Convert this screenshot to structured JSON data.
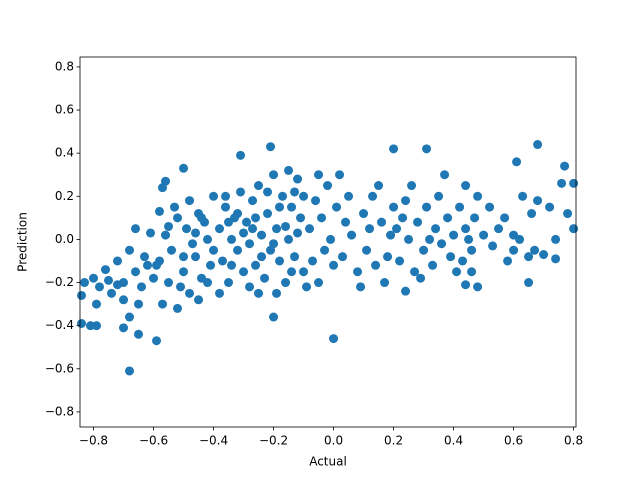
{
  "chart_data": {
    "type": "scatter",
    "xlabel": "Actual",
    "ylabel": "Prediction",
    "color": "#1f77b4",
    "xlim": [
      -0.845,
      0.808
    ],
    "ylim": [
      -0.87,
      0.846
    ],
    "xticks": [
      {
        "value": -0.8,
        "label": "−0.8"
      },
      {
        "value": -0.6,
        "label": "−0.6"
      },
      {
        "value": -0.4,
        "label": "−0.4"
      },
      {
        "value": -0.2,
        "label": "−0.2"
      },
      {
        "value": 0.0,
        "label": "0.0"
      },
      {
        "value": 0.2,
        "label": "0.2"
      },
      {
        "value": 0.4,
        "label": "0.4"
      },
      {
        "value": 0.6,
        "label": "0.6"
      },
      {
        "value": 0.8,
        "label": "0.8"
      }
    ],
    "yticks": [
      {
        "value": -0.8,
        "label": "−0.8"
      },
      {
        "value": -0.6,
        "label": "−0.6"
      },
      {
        "value": -0.4,
        "label": "−0.4"
      },
      {
        "value": -0.2,
        "label": "−0.2"
      },
      {
        "value": 0.0,
        "label": "0.0"
      },
      {
        "value": 0.2,
        "label": "0.2"
      },
      {
        "value": 0.4,
        "label": "0.4"
      },
      {
        "value": 0.6,
        "label": "0.6"
      },
      {
        "value": 0.8,
        "label": "0.8"
      }
    ],
    "x": [
      -0.83,
      -0.8,
      -0.78,
      -0.76,
      -0.74,
      -0.72,
      -0.7,
      -0.68,
      -0.66,
      -0.64,
      -0.62,
      -0.6,
      -0.66,
      -0.7,
      -0.75,
      -0.63,
      -0.61,
      -0.65,
      -0.79,
      -0.72,
      -0.58,
      -0.56,
      -0.55,
      -0.54,
      -0.52,
      -0.5,
      -0.49,
      -0.48,
      -0.46,
      -0.45,
      -0.44,
      -0.42,
      -0.41,
      -0.4,
      -0.57,
      -0.53,
      -0.47,
      -0.43,
      -0.59,
      -0.51,
      -0.55,
      -0.48,
      -0.45,
      -0.42,
      -0.5,
      -0.4,
      -0.58,
      -0.46,
      -0.52,
      -0.44,
      -0.38,
      -0.37,
      -0.36,
      -0.35,
      -0.34,
      -0.33,
      -0.32,
      -0.31,
      -0.3,
      -0.29,
      -0.28,
      -0.27,
      -0.26,
      -0.25,
      -0.24,
      -0.23,
      -0.22,
      -0.21,
      -0.2,
      -0.19,
      -0.18,
      -0.17,
      -0.16,
      -0.15,
      -0.14,
      -0.13,
      -0.12,
      -0.11,
      -0.1,
      -0.38,
      -0.36,
      -0.34,
      -0.32,
      -0.3,
      -0.28,
      -0.26,
      -0.24,
      -0.22,
      -0.2,
      -0.18,
      -0.16,
      -0.14,
      -0.12,
      -0.1,
      -0.35,
      -0.25,
      -0.15,
      -0.27,
      -0.19,
      -0.13,
      -0.08,
      -0.07,
      -0.06,
      -0.05,
      -0.04,
      -0.03,
      -0.02,
      -0.01,
      0.0,
      0.01,
      0.02,
      0.03,
      0.05,
      0.06,
      0.08,
      0.1,
      0.11,
      0.13,
      0.14,
      0.16,
      0.17,
      0.19,
      0.2,
      -0.09,
      -0.05,
      0.04,
      0.09,
      0.15,
      0.18,
      0.12,
      0.22,
      0.23,
      0.25,
      0.26,
      0.27,
      0.28,
      0.3,
      0.31,
      0.33,
      0.34,
      0.35,
      0.36,
      0.38,
      0.39,
      0.4,
      0.42,
      0.43,
      0.44,
      0.45,
      0.46,
      0.47,
      0.48,
      0.24,
      0.29,
      0.37,
      0.41,
      0.44,
      0.46,
      0.32,
      0.21,
      0.5,
      0.52,
      0.53,
      0.55,
      0.57,
      0.58,
      0.6,
      0.62,
      0.63,
      0.65,
      0.66,
      0.68,
      0.7,
      0.72,
      0.74,
      0.76,
      0.78,
      0.8,
      0.67,
      0.6,
      -0.68,
      0.0,
      -0.59,
      -0.2,
      0.68,
      0.31,
      0.2,
      -0.21,
      -0.31,
      -0.5,
      -0.56,
      -0.57,
      0.77,
      0.61,
      0.8,
      -0.84,
      -0.81,
      -0.79,
      -0.7,
      -0.65,
      -0.68,
      -0.84,
      0.74,
      0.65,
      0.44,
      0.48,
      0.24
    ],
    "y": [
      -0.2,
      -0.18,
      -0.22,
      -0.14,
      -0.25,
      -0.1,
      -0.2,
      -0.05,
      -0.15,
      -0.22,
      -0.12,
      -0.18,
      0.05,
      -0.28,
      -0.19,
      -0.08,
      0.03,
      -0.3,
      -0.3,
      -0.21,
      -0.1,
      0.02,
      -0.2,
      -0.05,
      0.1,
      -0.15,
      0.05,
      -0.25,
      -0.08,
      0.12,
      -0.18,
      0.0,
      -0.12,
      0.2,
      -0.3,
      0.15,
      -0.02,
      0.08,
      -0.12,
      -0.22,
      0.06,
      0.18,
      -0.28,
      -0.2,
      -0.08,
      -0.05,
      0.13,
      0.03,
      -0.32,
      0.1,
      0.05,
      -0.1,
      0.15,
      -0.2,
      0.0,
      0.1,
      -0.05,
      0.22,
      -0.15,
      0.08,
      -0.02,
      0.18,
      -0.12,
      0.25,
      0.02,
      -0.18,
      0.12,
      -0.05,
      0.3,
      0.05,
      -0.1,
      0.2,
      -0.2,
      0.0,
      0.15,
      -0.08,
      0.28,
      0.1,
      -0.15,
      -0.25,
      0.2,
      -0.12,
      0.12,
      0.03,
      -0.22,
      0.1,
      -0.08,
      0.22,
      -0.02,
      0.15,
      0.06,
      -0.15,
      0.03,
      0.2,
      0.08,
      -0.25,
      0.32,
      0.05,
      -0.25,
      0.22,
      0.05,
      -0.1,
      0.18,
      -0.2,
      0.1,
      -0.05,
      0.25,
      0.0,
      -0.12,
      0.15,
      0.3,
      -0.08,
      0.2,
      0.02,
      -0.15,
      0.12,
      -0.05,
      0.2,
      -0.12,
      0.08,
      -0.2,
      0.02,
      0.15,
      -0.22,
      0.3,
      0.08,
      -0.22,
      0.25,
      -0.08,
      0.05,
      -0.1,
      0.1,
      0.0,
      0.25,
      -0.15,
      0.08,
      -0.05,
      0.15,
      -0.12,
      0.05,
      0.2,
      -0.02,
      0.1,
      -0.08,
      0.02,
      0.15,
      -0.1,
      0.25,
      0.0,
      -0.05,
      0.1,
      0.2,
      0.18,
      -0.18,
      0.3,
      -0.15,
      0.05,
      -0.15,
      0.0,
      0.05,
      0.02,
      0.15,
      -0.03,
      0.05,
      0.1,
      -0.1,
      -0.05,
      0.0,
      0.2,
      -0.08,
      0.12,
      0.18,
      -0.07,
      0.15,
      0.0,
      0.26,
      0.12,
      0.26,
      -0.05,
      0.02,
      -0.61,
      -0.46,
      -0.47,
      -0.36,
      0.44,
      0.42,
      0.42,
      0.43,
      0.39,
      0.33,
      0.27,
      0.24,
      0.34,
      0.36,
      0.05,
      -0.39,
      -0.4,
      -0.4,
      -0.41,
      -0.44,
      -0.36,
      -0.26,
      -0.09,
      -0.2,
      -0.21,
      -0.22,
      -0.24
    ]
  }
}
